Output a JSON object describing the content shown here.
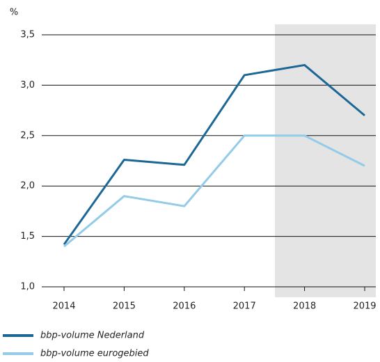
{
  "chart_data": {
    "type": "line",
    "y_label": "%",
    "categories": [
      "2014",
      "2015",
      "2016",
      "2017",
      "2018",
      "2019"
    ],
    "series": [
      {
        "name": "bbp-volume Nederland",
        "color": "#1d6797",
        "values": [
          1.42,
          2.26,
          2.21,
          3.1,
          3.2,
          2.7
        ]
      },
      {
        "name": "bbp-volume eurogebied",
        "color": "#93cbe8",
        "values": [
          1.4,
          1.9,
          1.8,
          2.5,
          2.5,
          2.2
        ]
      }
    ],
    "ylim": [
      1.0,
      3.5
    ],
    "yticks": [
      {
        "value": 1.0,
        "label": "1,0"
      },
      {
        "value": 1.5,
        "label": "1,5"
      },
      {
        "value": 2.0,
        "label": "2,0"
      },
      {
        "value": 2.5,
        "label": "2,5"
      },
      {
        "value": 3.0,
        "label": "3,0"
      },
      {
        "value": 3.5,
        "label": "3,5"
      }
    ],
    "grid": true,
    "legend": "bottom"
  }
}
